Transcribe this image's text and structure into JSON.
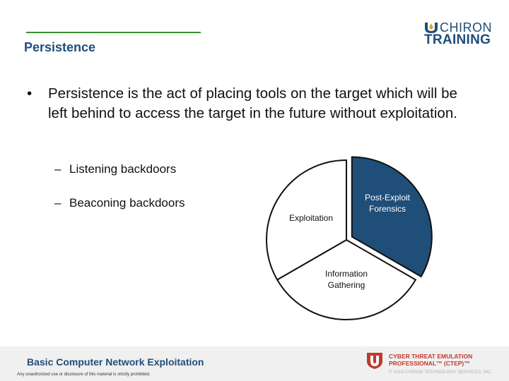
{
  "header": {
    "title": "Persistence",
    "logo": {
      "line1": "CHIRON",
      "line2": "TRAINING",
      "mark_icon": "chiron-mark-icon"
    }
  },
  "body": {
    "main_bullet": "Persistence is the act of placing tools on the target which will be left behind to access the target in the future without exploitation.",
    "bullet_glyph": "•",
    "sub_bullets": [
      {
        "dash": "–",
        "text": "Listening backdoors"
      },
      {
        "dash": "–",
        "text": "Beaconing backdoors"
      }
    ]
  },
  "chart_data": {
    "type": "pie",
    "categories": [
      "Post-Exploit Forensics",
      "Information Gathering",
      "Exploitation"
    ],
    "values": [
      33.3,
      33.3,
      33.3
    ],
    "label_lines": [
      [
        "Post-Exploit",
        "Forensics"
      ],
      [
        "Information",
        "Gathering"
      ],
      [
        "Exploitation"
      ]
    ],
    "highlighted": "Post-Exploit Forensics",
    "colors": {
      "highlight": "#1f4e79",
      "default": "#ffffff",
      "stroke": "#111111",
      "highlight_text": "#ffffff",
      "text": "#111111"
    }
  },
  "footer": {
    "title": "Basic Computer Network Exploitation",
    "disclaimer": "Any unauthorized use or disclosure of this material is strictly prohibited.",
    "cert_line1": "CYBER THREAT EMULATION",
    "cert_line2": "PROFESSIONAL™ (CTEP)™",
    "copyright": "© 2019 CHIRON TECHNOLOGY SERVICES, INC.",
    "shield_icon": "shield-icon"
  },
  "colors": {
    "accent": "#1f4e79",
    "rule": "#3a8f2e",
    "cert": "#c0392b",
    "footer_band": "#f0f0f0"
  }
}
